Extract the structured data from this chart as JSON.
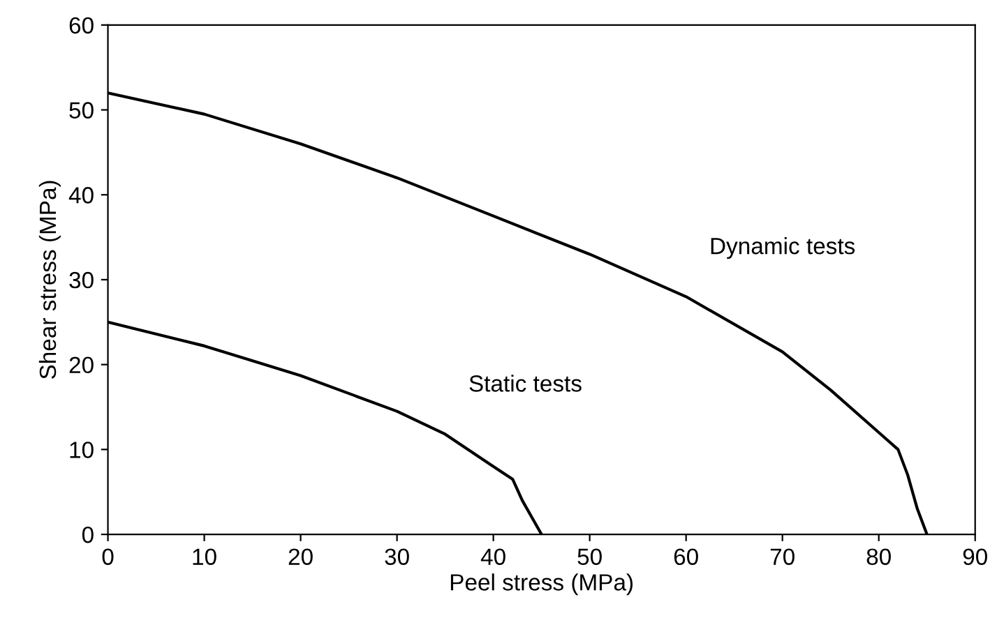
{
  "chart_data": {
    "type": "line",
    "xlabel": "Peel stress (MPa)",
    "ylabel": "Shear stress (MPa)",
    "series": [
      {
        "name": "Dynamic tests",
        "color": "#000000",
        "x": [
          0,
          10,
          20,
          30,
          40,
          50,
          60,
          70,
          75,
          80,
          82,
          83,
          84,
          85
        ],
        "values": [
          52,
          49.5,
          46,
          42,
          37.5,
          33,
          28,
          21.5,
          17,
          12,
          10,
          7,
          3,
          0
        ]
      },
      {
        "name": "Static tests",
        "color": "#000000",
        "x": [
          0,
          10,
          20,
          30,
          35,
          40,
          42,
          43,
          44,
          45
        ],
        "values": [
          25,
          22.2,
          18.7,
          14.5,
          11.8,
          8,
          6.5,
          4,
          2,
          0
        ]
      }
    ],
    "xlim": [
      0,
      90
    ],
    "xticks": [
      0,
      10,
      20,
      30,
      40,
      50,
      60,
      70,
      80,
      90
    ],
    "ylim": [
      0,
      60
    ],
    "yticks": [
      0,
      10,
      20,
      30,
      40,
      50,
      60
    ],
    "grid": false,
    "legend": false
  }
}
